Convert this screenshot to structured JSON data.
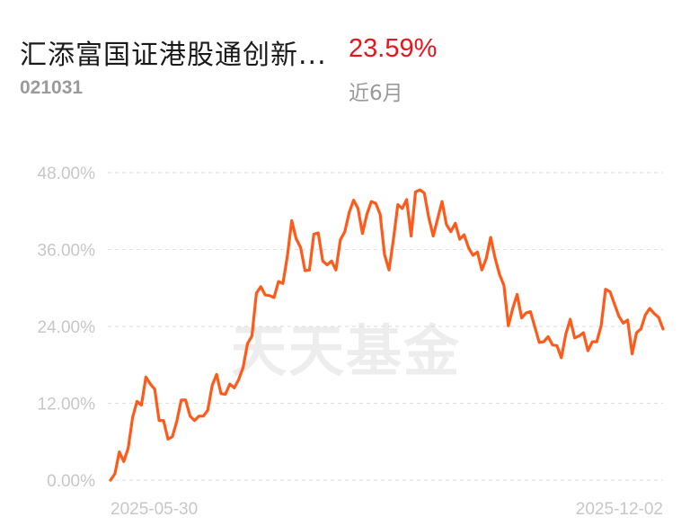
{
  "header": {
    "fund_name": "汇添富国证港股通创新...",
    "fund_code": "021031",
    "return_value": "23.59%",
    "return_period": "近6月",
    "return_color": "#e8151b"
  },
  "watermark": "天天基金",
  "chart_data": {
    "type": "line",
    "x_start_label": "2025-05-30",
    "x_end_label": "2025-12-02",
    "y_ticks": [
      "48.00%",
      "36.00%",
      "24.00%",
      "12.00%",
      "0.00%"
    ],
    "ylim": [
      0,
      48
    ],
    "grid": true,
    "line_color": "#ff5a1a",
    "series": [
      {
        "values": [
          0.0,
          1.0,
          4.4,
          2.9,
          5.0,
          9.8,
          12.3,
          11.7,
          16.1,
          15.0,
          14.2,
          9.3,
          9.3,
          6.4,
          6.8,
          9.2,
          12.5,
          12.5,
          10.0,
          9.3,
          10.0,
          10.0,
          10.9,
          14.8,
          16.5,
          13.5,
          13.4,
          15.0,
          14.4,
          15.7,
          17.6,
          21.3,
          22.5,
          29.2,
          30.2,
          28.9,
          28.8,
          28.5,
          31.0,
          30.7,
          34.9,
          40.5,
          37.7,
          36.3,
          32.7,
          32.8,
          38.4,
          38.6,
          34.2,
          33.6,
          34.2,
          32.8,
          37.5,
          38.8,
          41.8,
          43.7,
          42.4,
          38.5,
          41.5,
          43.5,
          43.2,
          41.5,
          35.2,
          32.8,
          37.6,
          43.0,
          42.4,
          43.8,
          38.1,
          45.0,
          45.3,
          44.8,
          41.0,
          38.1,
          40.8,
          43.5,
          39.9,
          38.8,
          40.1,
          37.6,
          38.3,
          36.3,
          35.1,
          35.6,
          32.8,
          34.6,
          37.9,
          34.7,
          32.1,
          30.4,
          24.1,
          26.8,
          29.0,
          25.3,
          26.1,
          26.3,
          23.9,
          21.5,
          21.6,
          22.4,
          21.1,
          21.0,
          19.1,
          22.8,
          25.1,
          22.2,
          22.5,
          23.0,
          20.2,
          21.6,
          21.6,
          24.1,
          29.8,
          29.4,
          27.5,
          25.6,
          24.5,
          25.0,
          19.7,
          23.0,
          23.6,
          25.8,
          26.8,
          26.0,
          25.4,
          23.59
        ]
      }
    ]
  }
}
